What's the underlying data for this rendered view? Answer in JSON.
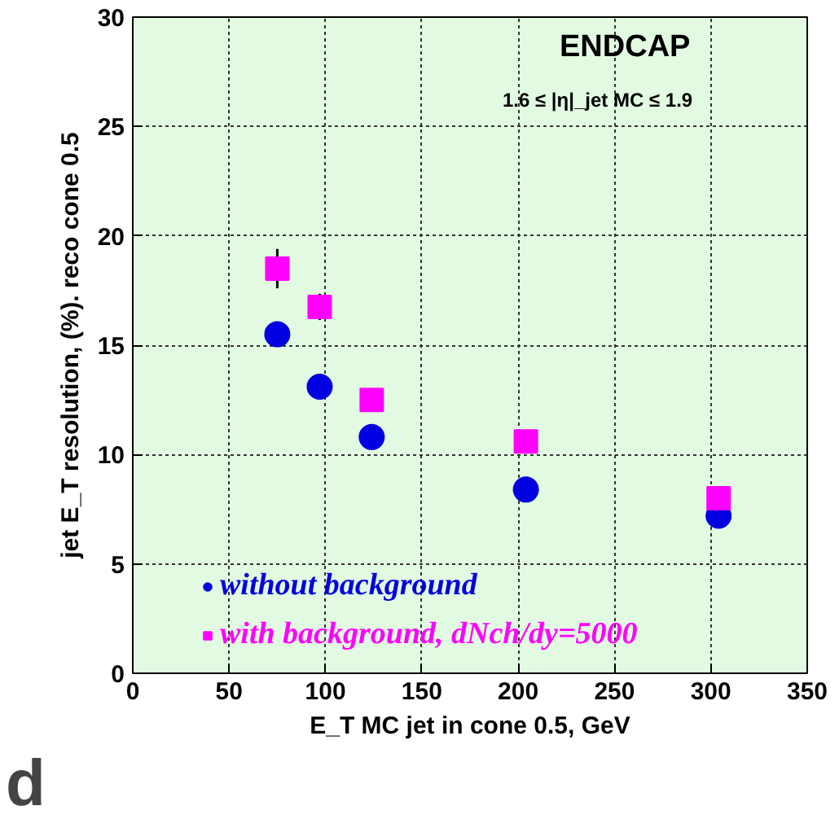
{
  "chart_data": {
    "type": "scatter",
    "xlabel": "E_T MC jet in cone 0.5, GeV",
    "ylabel": "jet E_T resolution, (%). reco cone 0.5",
    "annotations": [
      "ENDCAP",
      "1.6 ≤ |η|_jet MC ≤ 1.9",
      "d"
    ],
    "xlim": [
      0,
      350
    ],
    "xticks": [
      0,
      50,
      100,
      150,
      200,
      250,
      300,
      350
    ],
    "ylim": [
      0,
      30
    ],
    "yticks": [
      0,
      5,
      10,
      15,
      20,
      25,
      30
    ],
    "grid": true,
    "legend": "bottom left",
    "series": [
      {
        "name": "without background",
        "color": "#0000e0",
        "marker": "circle",
        "x": [
          75,
          97,
          124,
          204,
          304
        ],
        "values": [
          15.5,
          13.1,
          10.8,
          8.4,
          7.2
        ]
      },
      {
        "name": "with background, dNch/dy=5000",
        "color": "#ff00ff",
        "marker": "square",
        "x": [
          75,
          97,
          124,
          204,
          304
        ],
        "values": [
          18.5,
          16.75,
          12.5,
          10.6,
          8.0
        ],
        "errors": [
          0.9,
          0.6,
          null,
          null,
          null
        ]
      }
    ]
  }
}
